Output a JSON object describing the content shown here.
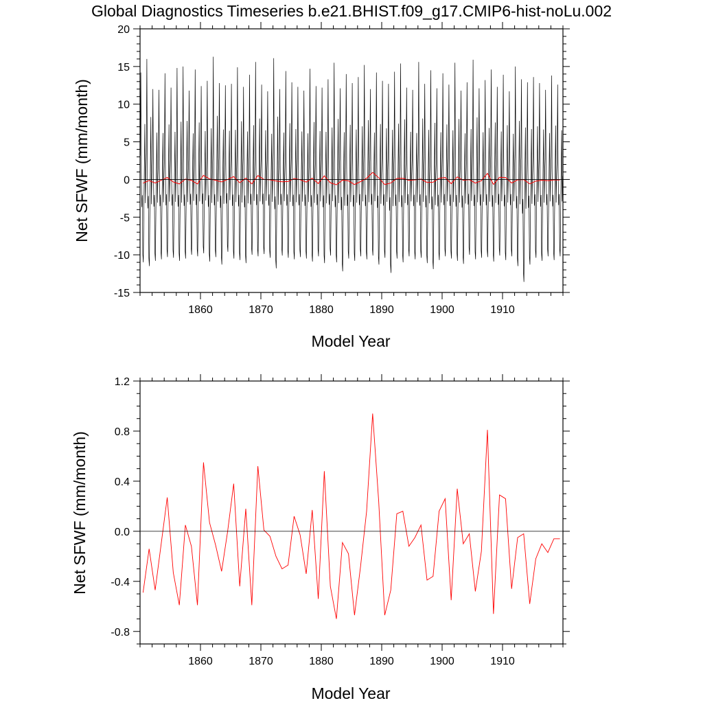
{
  "title": "Global Diagnostics Timeseries b.e21.BHIST.f09_g17.CMIP6-hist-noLu.002",
  "colors": {
    "monthly": "#000000",
    "annual": "#ff0000",
    "zero_line": "#000000"
  },
  "chart_data": [
    {
      "type": "line",
      "xlabel": "Model Year",
      "ylabel": "Net SFWF (mm/month)",
      "xlim": [
        1850,
        1920
      ],
      "ylim": [
        -15,
        20
      ],
      "xticks": [
        1860,
        1870,
        1880,
        1890,
        1900,
        1910
      ],
      "xtick_labels": [
        "1860",
        "1870",
        "1880",
        "1890",
        "1900",
        "1910"
      ],
      "yticks": [
        -15,
        -10,
        -5,
        0,
        5,
        10,
        15,
        20
      ],
      "ytick_labels": [
        "-15",
        "-10",
        "-5",
        "0",
        "5",
        "10",
        "15",
        "20"
      ],
      "reference_line": 0,
      "series": [
        {
          "style": "monthly",
          "seasonal_cycle": [
            3.0,
            13.5,
            1.0,
            -3.5,
            -2.0,
            -9.5,
            -10.5,
            -4.0,
            1.5,
            7.0,
            -3.0,
            0.5
          ],
          "annual_maxima": [
            14.2,
            16.0,
            12.0,
            11.9,
            14.1,
            12.2,
            14.8,
            15.0,
            11.8,
            14.6,
            12.4,
            13.1,
            16.3,
            12.8,
            12.5,
            12.7,
            14.9,
            12.3,
            13.9,
            15.6,
            12.6,
            11.7,
            16.1,
            12.0,
            14.4,
            12.9,
            12.3,
            11.8,
            14.7,
            12.4,
            12.2,
            13.3,
            15.5,
            12.1,
            14.0,
            12.8,
            13.6,
            15.2,
            12.0,
            14.2,
            13.1,
            12.7,
            14.3,
            15.4,
            12.2,
            11.9,
            15.6,
            12.7,
            14.5,
            12.1,
            14.1,
            12.6,
            15.5,
            11.8,
            12.9,
            15.9,
            12.1,
            13.2,
            14.6,
            12.3,
            13.9,
            11.7,
            15.0,
            13.3,
            12.9,
            13.6,
            12.8,
            11.9,
            13.8,
            12.6
          ],
          "annual_minima": [
            -11.0,
            -11.5,
            -10.8,
            -10.6,
            -10.3,
            -10.4,
            -10.8,
            -10.5,
            -10.0,
            -10.2,
            -9.8,
            -10.9,
            -10.3,
            -11.3,
            -9.6,
            -10.5,
            -10.7,
            -11.1,
            -10.0,
            -10.2,
            -9.9,
            -10.4,
            -11.8,
            -10.1,
            -10.4,
            -10.6,
            -10.3,
            -10.5,
            -10.9,
            -10.2,
            -11.1,
            -10.1,
            -11.0,
            -12.2,
            -10.5,
            -10.8,
            -10.2,
            -10.6,
            -10.1,
            -11.3,
            -10.4,
            -12.4,
            -10.5,
            -11.0,
            -10.2,
            -10.6,
            -10.4,
            -11.1,
            -11.9,
            -10.7,
            -10.2,
            -10.5,
            -10.8,
            -11.2,
            -10.0,
            -10.6,
            -10.4,
            -10.3,
            -10.9,
            -10.1,
            -10.7,
            -10.2,
            -11.5,
            -13.6,
            -11.3,
            -10.4,
            -10.8,
            -10.2,
            -10.7,
            -10.2
          ]
        },
        {
          "style": "annual",
          "x": [
            1850.5,
            1851.5,
            1852.5,
            1853.5,
            1854.5,
            1855.5,
            1856.5,
            1857.5,
            1858.5,
            1859.5,
            1860.5,
            1861.5,
            1862.5,
            1863.5,
            1864.5,
            1865.5,
            1866.5,
            1867.5,
            1868.5,
            1869.5,
            1870.5,
            1871.5,
            1872.5,
            1873.5,
            1874.5,
            1875.5,
            1876.5,
            1877.5,
            1878.5,
            1879.5,
            1880.5,
            1881.5,
            1882.5,
            1883.5,
            1884.5,
            1885.5,
            1886.5,
            1887.5,
            1888.5,
            1889.5,
            1890.5,
            1891.5,
            1892.5,
            1893.5,
            1894.5,
            1895.5,
            1896.5,
            1897.5,
            1898.5,
            1899.5,
            1900.5,
            1901.5,
            1902.5,
            1903.5,
            1904.5,
            1905.5,
            1906.5,
            1907.5,
            1908.5,
            1909.5,
            1910.5,
            1911.5,
            1912.5,
            1913.5,
            1914.5,
            1915.5,
            1916.5,
            1917.5,
            1918.5,
            1919.5
          ],
          "y": [
            -0.49,
            -0.14,
            -0.47,
            -0.1,
            0.27,
            -0.33,
            -0.59,
            0.05,
            -0.12,
            -0.59,
            0.55,
            0.07,
            -0.11,
            -0.32,
            0.0,
            0.38,
            -0.44,
            0.18,
            -0.59,
            0.52,
            0.01,
            -0.04,
            -0.2,
            -0.3,
            -0.27,
            0.12,
            -0.03,
            -0.34,
            0.17,
            -0.54,
            0.48,
            -0.44,
            -0.7,
            -0.09,
            -0.18,
            -0.67,
            -0.28,
            0.16,
            0.94,
            0.24,
            -0.67,
            -0.47,
            0.14,
            0.16,
            -0.12,
            -0.05,
            0.05,
            -0.39,
            -0.36,
            0.16,
            0.26,
            -0.55,
            0.34,
            -0.1,
            -0.02,
            -0.48,
            -0.16,
            0.81,
            -0.66,
            0.29,
            0.26,
            -0.46,
            -0.05,
            -0.02,
            -0.58,
            -0.22,
            -0.1,
            -0.17,
            -0.06,
            -0.06
          ]
        }
      ]
    },
    {
      "type": "line",
      "xlabel": "Model Year",
      "ylabel": "Net SFWF (mm/month)",
      "xlim": [
        1850,
        1920
      ],
      "ylim": [
        -0.9,
        1.2
      ],
      "xticks": [
        1860,
        1870,
        1880,
        1890,
        1900,
        1910
      ],
      "xtick_labels": [
        "1860",
        "1870",
        "1880",
        "1890",
        "1900",
        "1910"
      ],
      "yticks": [
        -0.8,
        -0.4,
        0.0,
        0.4,
        0.8,
        1.2
      ],
      "ytick_labels": [
        "-0.8",
        "-0.4",
        "0.0",
        "0.4",
        "0.8",
        "1.2"
      ],
      "reference_line": 0,
      "series": [
        {
          "style": "annual",
          "same_as_panel": 0
        }
      ]
    }
  ]
}
